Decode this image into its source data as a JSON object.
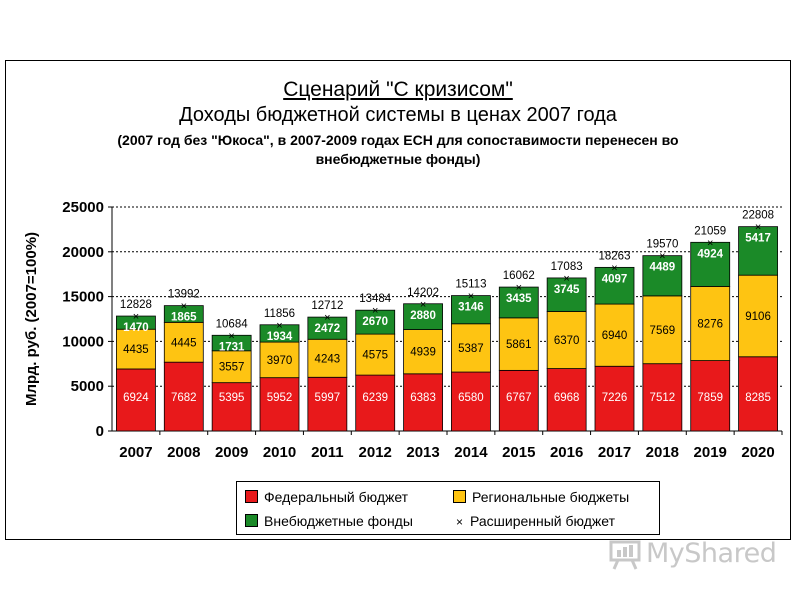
{
  "header": {
    "title_line1": "Сценарий \"С кризисом\"",
    "title_line2": "Доходы бюджетной системы  в ценах 2007 года",
    "subtitle_line1": "(2007 год без \"Юкоса\", в 2007-2009 годах ЕСН для сопоставимости перенесен во",
    "subtitle_line2": "внебюджетные фонды)"
  },
  "legend": {
    "federal": "Федеральный бюджет",
    "regional": "Региональные бюджеты",
    "offbudget": "Внебюджетные фонды",
    "extended": "Расширенный бюджет"
  },
  "watermark": {
    "text": "MyShared"
  },
  "chart_data": {
    "type": "bar",
    "stacked": true,
    "categories": [
      "2007",
      "2008",
      "2009",
      "2010",
      "2011",
      "2012",
      "2013",
      "2014",
      "2015",
      "2016",
      "2017",
      "2018",
      "2019",
      "2020"
    ],
    "series": [
      {
        "name": "Федеральный бюджет",
        "color": "#e8191b",
        "values": [
          6924,
          7682,
          5395,
          5952,
          5997,
          6239,
          6383,
          6580,
          6767,
          6968,
          7226,
          7512,
          7859,
          8285
        ]
      },
      {
        "name": "Региональные бюджеты",
        "color": "#fec412",
        "values": [
          4435,
          4445,
          3557,
          3970,
          4243,
          4575,
          4939,
          5387,
          5861,
          6370,
          6940,
          7569,
          8276,
          9106
        ]
      },
      {
        "name": "Внебюджетные фонды",
        "color": "#1b8a28",
        "values": [
          1470,
          1865,
          1731,
          1934,
          2472,
          2670,
          2880,
          3146,
          3435,
          3745,
          4097,
          4489,
          4924,
          5417
        ]
      }
    ],
    "extended_budget": {
      "name": "Расширенный бюджет",
      "values": [
        12828,
        13992,
        10684,
        11856,
        12712,
        13484,
        14202,
        15113,
        16062,
        17083,
        18263,
        19570,
        21059,
        22808
      ]
    },
    "ylabel": "Млрд. руб. (2007=100%)",
    "ylim": [
      0,
      25000
    ],
    "yticks": [
      0,
      5000,
      10000,
      15000,
      20000,
      25000
    ],
    "grid": true,
    "legend_position": "bottom"
  }
}
